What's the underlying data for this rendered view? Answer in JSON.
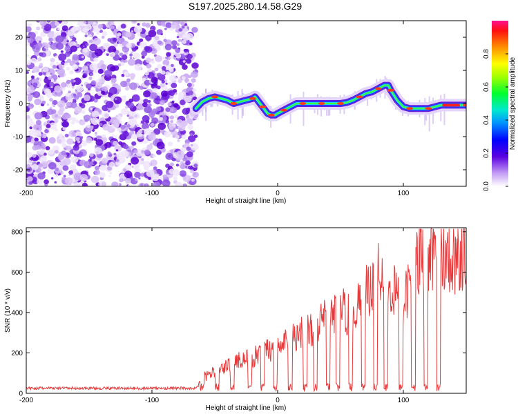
{
  "title": "S197.2025.280.14.58.G29",
  "chart_data": [
    {
      "type": "heatmap",
      "title": "S197.2025.280.14.58.G29",
      "xlabel": "Height of straight line (km)",
      "ylabel": "Frequency (Hz)",
      "xlim": [
        -200,
        150
      ],
      "ylim": [
        -25,
        25
      ],
      "xticks": [
        -200,
        -100,
        0,
        100
      ],
      "yticks": [
        -20,
        -10,
        0,
        10,
        20
      ],
      "xtick_labels": [
        "-200",
        "-100",
        "0",
        "100"
      ],
      "ytick_labels": [
        "-20",
        "-10",
        "0",
        "10",
        "20"
      ],
      "noise_region_x": [
        -200,
        -65
      ],
      "ridge": {
        "x": [
          -65,
          -60,
          -55,
          -50,
          -45,
          -40,
          -35,
          -30,
          -25,
          -20,
          -18,
          -15,
          -12,
          -10,
          -8,
          -5,
          -2,
          0,
          5,
          10,
          15,
          20,
          25,
          30,
          35,
          40,
          45,
          50,
          55,
          60,
          65,
          70,
          75,
          80,
          85,
          88,
          90,
          95,
          100,
          105,
          110,
          115,
          120,
          125,
          130,
          135,
          140,
          145,
          150
        ],
        "y": [
          -1.5,
          0.5,
          1.5,
          2,
          1.5,
          1,
          0,
          0.5,
          1,
          1.5,
          2,
          0.5,
          -1,
          -2,
          -3,
          -3.5,
          -3.5,
          -3,
          -2,
          -1,
          0,
          0,
          0,
          0,
          0,
          0,
          0,
          0,
          0.3,
          1,
          2,
          3,
          3.5,
          4.5,
          5.5,
          5.5,
          4,
          1,
          -1,
          -1.5,
          -1.5,
          -1.5,
          -1.5,
          -1,
          -0.5,
          -0.5,
          -0.5,
          -0.5,
          -0.5
        ]
      },
      "colorbar": {
        "label": "Normalized spectral amplitude",
        "range": [
          0,
          1
        ],
        "ticks": [
          "0.0",
          "0.2",
          "0.4",
          "0.6",
          "0.8"
        ]
      }
    },
    {
      "type": "line",
      "xlabel": "Height of straight line (km)",
      "ylabel": "SNR (10 * v/v)",
      "xlim": [
        -200,
        150
      ],
      "ylim": [
        0,
        820
      ],
      "xticks": [
        -200,
        -100,
        0,
        100
      ],
      "yticks": [
        0,
        200,
        400,
        600,
        800
      ],
      "xtick_labels": [
        "-200",
        "-100",
        "0",
        "100"
      ],
      "ytick_labels": [
        "0",
        "200",
        "400",
        "600",
        "800"
      ],
      "color": "#e8393a",
      "series": [
        {
          "name": "SNR",
          "x": [
            -200,
            -150,
            -100,
            -65,
            -60,
            -50,
            -40,
            -30,
            -20,
            -10,
            0,
            10,
            20,
            30,
            40,
            50,
            60,
            70,
            80,
            90,
            100,
            110,
            120,
            130,
            140,
            150
          ],
          "y": [
            20,
            20,
            20,
            20,
            80,
            110,
            140,
            170,
            180,
            220,
            230,
            280,
            320,
            330,
            390,
            420,
            400,
            500,
            650,
            540,
            440,
            650,
            720,
            730,
            700,
            680
          ]
        }
      ],
      "dips_x": [
        -60,
        -48,
        -36,
        -22,
        -12,
        -2,
        10,
        22,
        30,
        40,
        48,
        58,
        68,
        78,
        86,
        98,
        108,
        118,
        128
      ]
    }
  ]
}
